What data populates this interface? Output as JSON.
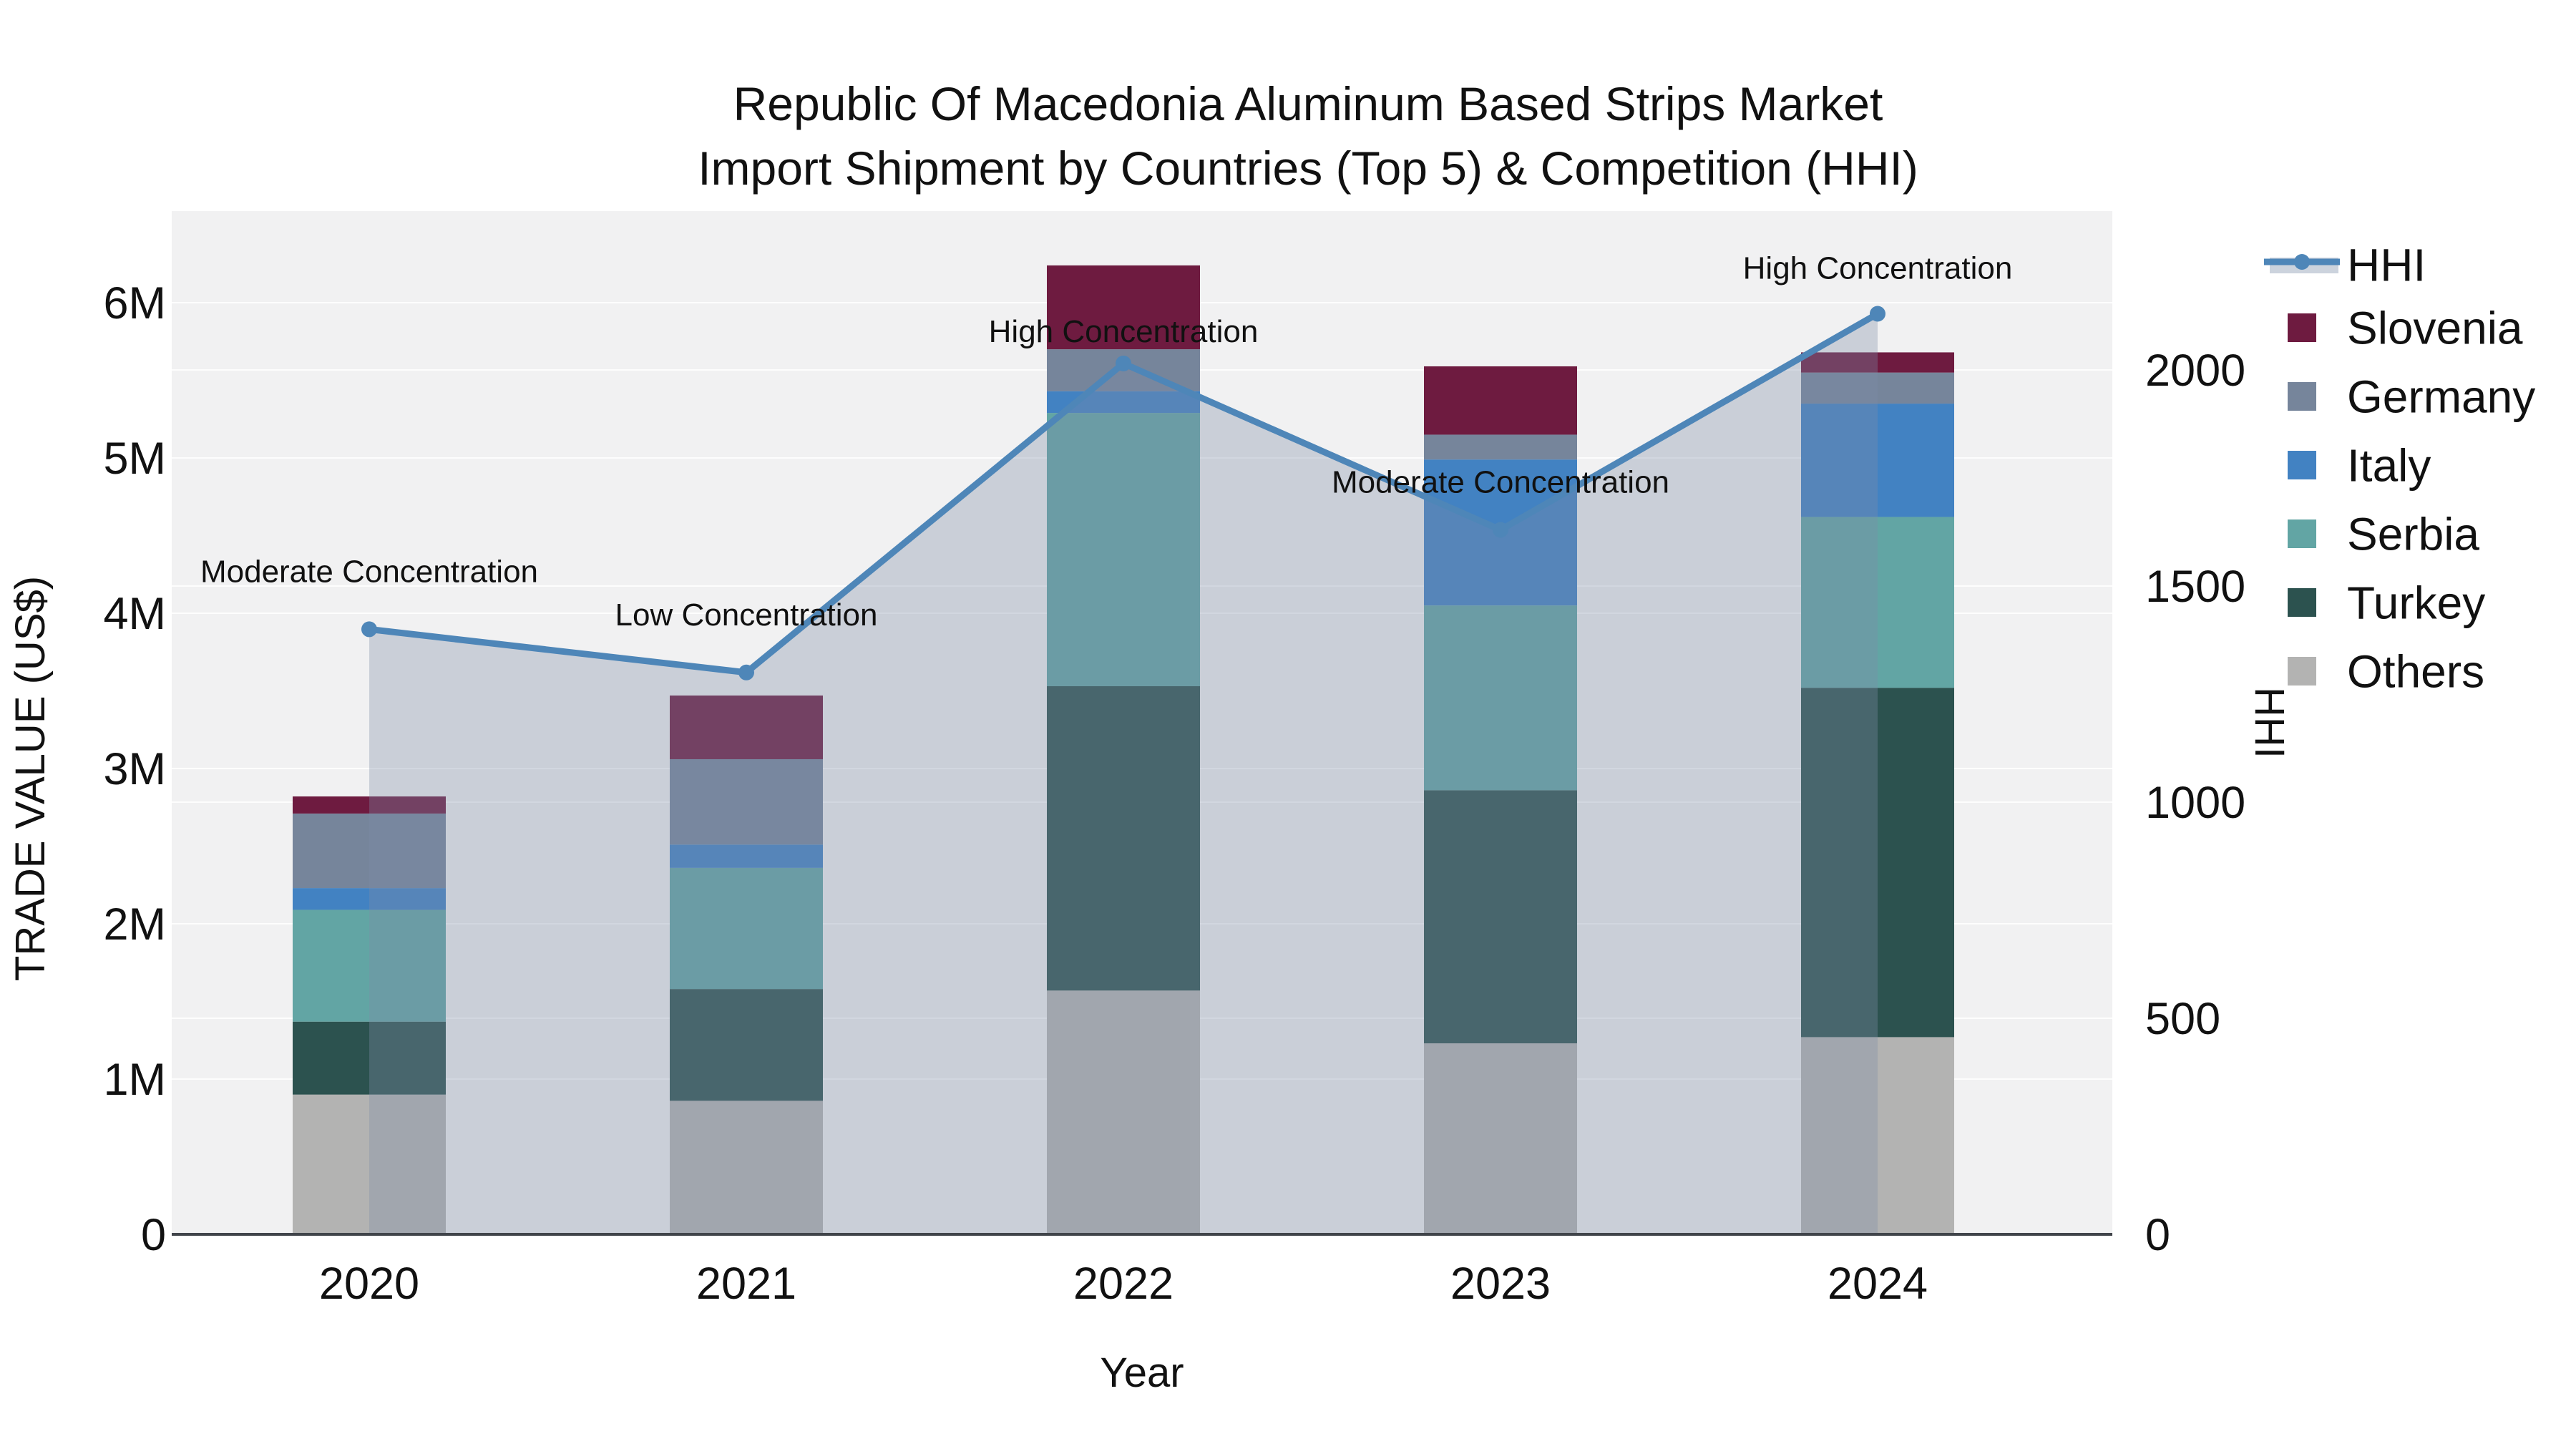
{
  "title": {
    "line1": "Republic Of Macedonia Aluminum Based Strips Market",
    "line2": "Import Shipment by Countries (Top 5) & Competition (HHI)"
  },
  "axes": {
    "x": {
      "title": "Year",
      "categories": [
        "2020",
        "2021",
        "2022",
        "2023",
        "2024"
      ]
    },
    "y_left": {
      "title": "TRADE VALUE (US$)",
      "tick_labels": [
        "0",
        "1M",
        "2M",
        "3M",
        "4M",
        "5M",
        "6M"
      ]
    },
    "y_right": {
      "title": "HHI",
      "tick_labels": [
        "0",
        "500",
        "1000",
        "1500",
        "2000"
      ]
    }
  },
  "legend": {
    "items": [
      {
        "label": "HHI",
        "type": "line",
        "color": "#4e86b8"
      },
      {
        "label": "Slovenia",
        "type": "swatch",
        "color": "#6e1b40"
      },
      {
        "label": "Germany",
        "type": "swatch",
        "color": "#76859b"
      },
      {
        "label": "Italy",
        "type": "swatch",
        "color": "#4282c2"
      },
      {
        "label": "Serbia",
        "type": "swatch",
        "color": "#62a5a4"
      },
      {
        "label": "Turkey",
        "type": "swatch",
        "color": "#2c524f"
      },
      {
        "label": "Others",
        "type": "swatch",
        "color": "#b3b3b2"
      }
    ]
  },
  "annotations": [
    {
      "year": "2020",
      "text": "Moderate Concentration",
      "dy": 66
    },
    {
      "year": "2021",
      "text": "Low Concentration",
      "dy": 66
    },
    {
      "year": "2022",
      "text": "High Concentration",
      "dy": 30
    },
    {
      "year": "2023",
      "text": "Moderate Concentration",
      "dy": 52
    },
    {
      "year": "2024",
      "text": "High Concentration",
      "dy": 49
    }
  ],
  "colors": {
    "plot_bg": "#f1f1f2",
    "grid": "#ffffff",
    "axis_line": "#40444a",
    "text": "#111111",
    "hhi_line": "#4e86b8",
    "hhi_area": "#7e8da6",
    "hhi_area_opacity": 0.34,
    "legend_band": "#ccd3dd"
  },
  "chart_data": {
    "type": "bar+line (stacked bars, dual y-axis)",
    "title": "Republic Of Macedonia Aluminum Based Strips Market — Import Shipment by Countries (Top 5) & Competition (HHI)",
    "xlabel": "Year",
    "ylabel": "TRADE VALUE (US$)",
    "ylabel_right": "HHI",
    "categories": [
      "2020",
      "2021",
      "2022",
      "2023",
      "2024"
    ],
    "stack_order": "bottom to top",
    "series": [
      {
        "name": "Others",
        "color": "#b3b3b2",
        "values_musd": [
          0.9,
          0.86,
          1.57,
          1.23,
          1.27
        ]
      },
      {
        "name": "Turkey",
        "color": "#2c524f",
        "values_musd": [
          0.47,
          0.72,
          1.96,
          1.63,
          2.25
        ]
      },
      {
        "name": "Serbia",
        "color": "#62a5a4",
        "values_musd": [
          0.72,
          0.78,
          1.76,
          1.19,
          1.1
        ]
      },
      {
        "name": "Italy",
        "color": "#4282c2",
        "values_musd": [
          0.14,
          0.15,
          0.14,
          0.94,
          0.73
        ]
      },
      {
        "name": "Germany",
        "color": "#76859b",
        "values_musd": [
          0.48,
          0.55,
          0.27,
          0.16,
          0.2
        ]
      },
      {
        "name": "Slovenia",
        "color": "#6e1b40",
        "values_musd": [
          0.11,
          0.41,
          0.54,
          0.44,
          0.13
        ]
      }
    ],
    "bar_totals_musd": [
      2.82,
      3.47,
      6.24,
      5.59,
      5.68
    ],
    "line_series": {
      "name": "HHI",
      "values": [
        1400,
        1300,
        2015,
        1630,
        2130
      ],
      "axis": "right",
      "markers": true,
      "area_fill": true
    },
    "ylim_left_musd": [
      0,
      6.59
    ],
    "ylim_right": [
      0,
      2367
    ],
    "grid": true,
    "legend_position": "right"
  }
}
